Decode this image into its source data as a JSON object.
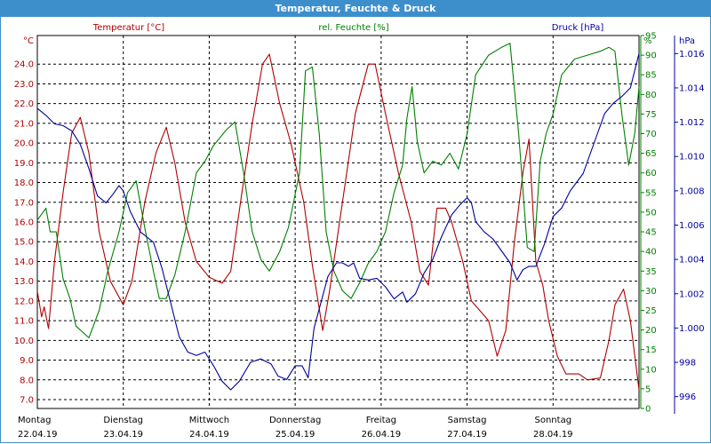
{
  "window": {
    "title": "Temperatur, Feuchte & Druck"
  },
  "legend": {
    "temp": "Temperatur [°C]",
    "hum": "rel. Feuchte [%]",
    "press": "Druck [hPa]"
  },
  "units": {
    "temp": "°C",
    "hum": "%",
    "press": "hPa"
  },
  "colors": {
    "temp": "#b00000",
    "hum": "#008000",
    "press": "#00009c",
    "grid": "#000000",
    "title_bg": "#3d8fcc"
  },
  "chart_data": {
    "type": "line",
    "title": "Temperatur, Feuchte & Druck",
    "grid": true,
    "x_axis": {
      "range": [
        0,
        7
      ],
      "unit": "days since 22.04.19 00:00",
      "ticks": [
        {
          "x": 0,
          "day": "Montag",
          "date": "22.04.19"
        },
        {
          "x": 1,
          "day": "Dienstag",
          "date": "23.04.19"
        },
        {
          "x": 2,
          "day": "Mittwoch",
          "date": "24.04.19"
        },
        {
          "x": 3,
          "day": "Donnerstag",
          "date": "25.04.19"
        },
        {
          "x": 4,
          "day": "Freitag",
          "date": "26.04.19"
        },
        {
          "x": 5,
          "day": "Samstag",
          "date": "27.04.19"
        },
        {
          "x": 6,
          "day": "Sonntag",
          "date": "28.04.19"
        }
      ]
    },
    "y_axes": {
      "temp": {
        "min": 7.0,
        "max": 25.0,
        "ticks": [
          "24.0",
          "23.0",
          "22.0",
          "21.0",
          "20.0",
          "19.0",
          "18.0",
          "17.0",
          "16.0",
          "15.0",
          "14.0",
          "13.0",
          "12.0",
          "11.0",
          "10.0",
          "9.0",
          "8.0",
          "7.0"
        ]
      },
      "hum": {
        "min": 0,
        "max": 95,
        "ticks": [
          "95",
          "90",
          "85",
          "80",
          "75",
          "70",
          "65",
          "60",
          "55",
          "50",
          "45",
          "40",
          "35",
          "30",
          "25",
          "20",
          "15",
          "10",
          "5",
          "0"
        ]
      },
      "press": {
        "min": 995,
        "max": 1017,
        "ticks": [
          "1.016",
          "1.014",
          "1.012",
          "1.010",
          "1.008",
          "1.006",
          "1.004",
          "1.002",
          "1.000",
          "998",
          "996"
        ]
      }
    },
    "series": [
      {
        "name": "Temperatur [°C]",
        "axis": "temp",
        "points": [
          [
            0,
            12.5
          ],
          [
            0.05,
            11.2
          ],
          [
            0.08,
            11.7
          ],
          [
            0.13,
            10.6
          ],
          [
            0.2,
            14
          ],
          [
            0.3,
            17.5
          ],
          [
            0.4,
            20.5
          ],
          [
            0.5,
            21.3
          ],
          [
            0.6,
            19.5
          ],
          [
            0.72,
            15.5
          ],
          [
            0.85,
            13
          ],
          [
            1.0,
            11.8
          ],
          [
            1.1,
            13
          ],
          [
            1.25,
            17
          ],
          [
            1.38,
            19.5
          ],
          [
            1.5,
            20.8
          ],
          [
            1.6,
            19
          ],
          [
            1.72,
            16
          ],
          [
            1.85,
            14
          ],
          [
            2.0,
            13.2
          ],
          [
            2.15,
            12.9
          ],
          [
            2.25,
            13.5
          ],
          [
            2.38,
            17.5
          ],
          [
            2.5,
            21
          ],
          [
            2.62,
            24
          ],
          [
            2.7,
            24.5
          ],
          [
            2.82,
            22
          ],
          [
            2.95,
            20
          ],
          [
            3.1,
            17
          ],
          [
            3.2,
            13.8
          ],
          [
            3.32,
            10.5
          ],
          [
            3.4,
            12.5
          ],
          [
            3.55,
            17
          ],
          [
            3.7,
            21.5
          ],
          [
            3.85,
            24
          ],
          [
            3.93,
            24
          ],
          [
            4.05,
            21.5
          ],
          [
            4.2,
            18.5
          ],
          [
            4.35,
            16
          ],
          [
            4.45,
            13.5
          ],
          [
            4.55,
            12.8
          ],
          [
            4.65,
            16.7
          ],
          [
            4.75,
            16.7
          ],
          [
            4.82,
            16
          ],
          [
            4.95,
            14
          ],
          [
            5.05,
            12
          ],
          [
            5.15,
            11.5
          ],
          [
            5.25,
            11
          ],
          [
            5.35,
            9.2
          ],
          [
            5.45,
            10.5
          ],
          [
            5.55,
            15
          ],
          [
            5.65,
            18.5
          ],
          [
            5.72,
            20.2
          ],
          [
            5.8,
            14
          ],
          [
            5.88,
            12.8
          ],
          [
            5.95,
            11
          ],
          [
            6.05,
            9.2
          ],
          [
            6.15,
            8.3
          ],
          [
            6.3,
            8.3
          ],
          [
            6.4,
            8
          ],
          [
            6.55,
            8.1
          ],
          [
            6.65,
            10
          ],
          [
            6.72,
            11.8
          ],
          [
            6.82,
            12.6
          ],
          [
            6.9,
            11
          ],
          [
            7.0,
            7.5
          ]
        ]
      },
      {
        "name": "rel. Feuchte [%]",
        "axis": "hum",
        "points": [
          [
            0,
            48
          ],
          [
            0.1,
            51
          ],
          [
            0.15,
            45
          ],
          [
            0.22,
            45
          ],
          [
            0.3,
            33
          ],
          [
            0.38,
            28
          ],
          [
            0.45,
            21
          ],
          [
            0.6,
            18
          ],
          [
            0.72,
            25
          ],
          [
            0.82,
            35
          ],
          [
            0.95,
            45
          ],
          [
            1.05,
            55
          ],
          [
            1.15,
            58
          ],
          [
            1.25,
            46
          ],
          [
            1.35,
            35
          ],
          [
            1.42,
            28
          ],
          [
            1.5,
            28
          ],
          [
            1.6,
            34
          ],
          [
            1.72,
            45
          ],
          [
            1.85,
            60
          ],
          [
            1.95,
            63
          ],
          [
            2.05,
            67
          ],
          [
            2.2,
            71
          ],
          [
            2.3,
            73
          ],
          [
            2.4,
            60
          ],
          [
            2.5,
            45
          ],
          [
            2.6,
            38
          ],
          [
            2.7,
            35
          ],
          [
            2.82,
            40
          ],
          [
            2.92,
            46
          ],
          [
            3.05,
            60
          ],
          [
            3.12,
            86
          ],
          [
            3.2,
            87
          ],
          [
            3.28,
            70
          ],
          [
            3.36,
            45
          ],
          [
            3.45,
            35
          ],
          [
            3.55,
            30
          ],
          [
            3.65,
            28
          ],
          [
            3.75,
            32
          ],
          [
            3.85,
            37
          ],
          [
            3.95,
            40
          ],
          [
            4.05,
            45
          ],
          [
            4.15,
            55
          ],
          [
            4.25,
            62
          ],
          [
            4.3,
            74
          ],
          [
            4.36,
            82
          ],
          [
            4.42,
            68
          ],
          [
            4.5,
            60
          ],
          [
            4.6,
            63
          ],
          [
            4.7,
            62
          ],
          [
            4.8,
            65
          ],
          [
            4.9,
            61
          ],
          [
            5.0,
            70
          ],
          [
            5.1,
            85
          ],
          [
            5.25,
            90
          ],
          [
            5.4,
            92
          ],
          [
            5.5,
            93
          ],
          [
            5.6,
            70
          ],
          [
            5.7,
            41
          ],
          [
            5.78,
            40
          ],
          [
            5.85,
            63
          ],
          [
            5.92,
            70
          ],
          [
            6.0,
            75
          ],
          [
            6.1,
            85
          ],
          [
            6.25,
            89
          ],
          [
            6.4,
            90
          ],
          [
            6.55,
            91
          ],
          [
            6.65,
            92
          ],
          [
            6.72,
            91
          ],
          [
            6.8,
            75
          ],
          [
            6.88,
            62
          ],
          [
            6.95,
            70
          ],
          [
            7.0,
            82
          ]
        ]
      },
      {
        "name": "Druck [hPa]",
        "axis": "press",
        "points": [
          [
            0,
            1012.8
          ],
          [
            0.1,
            1012.4
          ],
          [
            0.2,
            1011.9
          ],
          [
            0.3,
            1011.8
          ],
          [
            0.4,
            1011.5
          ],
          [
            0.5,
            1010.7
          ],
          [
            0.6,
            1009.3
          ],
          [
            0.7,
            1007.7
          ],
          [
            0.8,
            1007.3
          ],
          [
            0.88,
            1007.8
          ],
          [
            0.95,
            1008.3
          ],
          [
            1.0,
            1008.0
          ],
          [
            1.08,
            1006.8
          ],
          [
            1.2,
            1005.6
          ],
          [
            1.35,
            1005.0
          ],
          [
            1.45,
            1003.5
          ],
          [
            1.55,
            1001.5
          ],
          [
            1.65,
            999.5
          ],
          [
            1.75,
            998.6
          ],
          [
            1.85,
            998.4
          ],
          [
            1.95,
            998.6
          ],
          [
            2.05,
            997.8
          ],
          [
            2.15,
            996.9
          ],
          [
            2.25,
            996.4
          ],
          [
            2.35,
            996.9
          ],
          [
            2.48,
            998.0
          ],
          [
            2.6,
            998.2
          ],
          [
            2.72,
            997.9
          ],
          [
            2.8,
            997.2
          ],
          [
            2.9,
            997.0
          ],
          [
            3.0,
            997.8
          ],
          [
            3.08,
            997.8
          ],
          [
            3.15,
            997.1
          ],
          [
            3.22,
            1000.0
          ],
          [
            3.3,
            1001.5
          ],
          [
            3.38,
            1003.0
          ],
          [
            3.48,
            1003.8
          ],
          [
            3.55,
            1003.8
          ],
          [
            3.62,
            1003.6
          ],
          [
            3.68,
            1003.8
          ],
          [
            3.75,
            1002.9
          ],
          [
            3.85,
            1002.8
          ],
          [
            3.95,
            1002.9
          ],
          [
            4.05,
            1002.4
          ],
          [
            4.15,
            1001.7
          ],
          [
            4.25,
            1002.1
          ],
          [
            4.3,
            1001.5
          ],
          [
            4.4,
            1002.0
          ],
          [
            4.5,
            1003.2
          ],
          [
            4.6,
            1004.0
          ],
          [
            4.7,
            1005.3
          ],
          [
            4.82,
            1006.6
          ],
          [
            4.92,
            1007.2
          ],
          [
            5.0,
            1007.6
          ],
          [
            5.05,
            1007.3
          ],
          [
            5.1,
            1006.2
          ],
          [
            5.2,
            1005.6
          ],
          [
            5.3,
            1005.2
          ],
          [
            5.4,
            1004.5
          ],
          [
            5.5,
            1003.8
          ],
          [
            5.58,
            1002.8
          ],
          [
            5.65,
            1003.4
          ],
          [
            5.72,
            1003.6
          ],
          [
            5.8,
            1003.6
          ],
          [
            5.9,
            1004.9
          ],
          [
            6.0,
            1006.5
          ],
          [
            6.1,
            1007.0
          ],
          [
            6.2,
            1008.0
          ],
          [
            6.35,
            1009.0
          ],
          [
            6.5,
            1011.1
          ],
          [
            6.6,
            1012.5
          ],
          [
            6.7,
            1013.1
          ],
          [
            6.8,
            1013.5
          ],
          [
            6.9,
            1014.0
          ],
          [
            7.0,
            1016.0
          ]
        ]
      }
    ]
  }
}
